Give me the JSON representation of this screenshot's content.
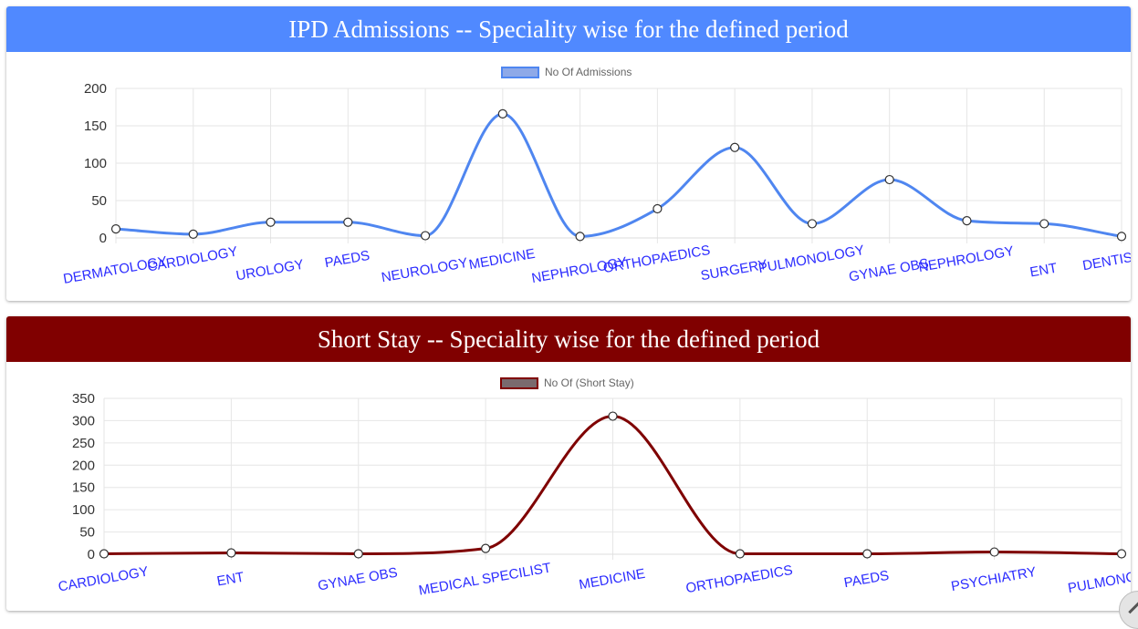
{
  "colors": {
    "ipd_header": "#5089ff",
    "ipd_line": "#4f86f0",
    "ipd_legend_fill": "#8ea9e8",
    "ss_header": "#800000",
    "ss_line": "#7f0000",
    "ss_legend_fill": "#7a6a6e",
    "tick_label": "#2b2bff",
    "grid": "#e6e6e6"
  },
  "icons": {
    "corner": "pencil-icon"
  },
  "chart_data": [
    {
      "type": "line",
      "title": "IPD Admissions -- Speciality wise for the defined period",
      "legend_position": "top",
      "grid": true,
      "ylim": [
        0,
        200
      ],
      "yticks": [
        0,
        50,
        100,
        150,
        200
      ],
      "categories": [
        "DERMATOLOGY",
        "CARDIOLOGY",
        "UROLOGY",
        "PAEDS",
        "NEUROLOGY",
        "MEDICINE",
        "NEPHROLOGY",
        "ORTHOPAEDICS",
        "SURGERY",
        "PULMONOLOGY",
        "GYNAE OBS",
        "NEPHROLOGY",
        "ENT",
        "DENTISTRY"
      ],
      "series": [
        {
          "name": "No Of Admissions",
          "values": [
            12,
            5,
            21,
            21,
            3,
            166,
            2,
            39,
            121,
            19,
            78,
            23,
            19,
            2
          ]
        }
      ]
    },
    {
      "type": "line",
      "title": "Short Stay -- Speciality wise for the defined period",
      "legend_position": "top",
      "grid": true,
      "ylim": [
        0,
        350
      ],
      "yticks": [
        0,
        50,
        100,
        150,
        200,
        250,
        300,
        350
      ],
      "categories": [
        "CARDIOLOGY",
        "ENT",
        "GYNAE OBS",
        "MEDICAL SPECILIST",
        "MEDICINE",
        "ORTHOPAEDICS",
        "PAEDS",
        "PSYCHIATRY",
        "PULMONOLOGY"
      ],
      "series": [
        {
          "name": "No Of (Short Stay)",
          "values": [
            1,
            3,
            1,
            13,
            310,
            1,
            1,
            5,
            1
          ]
        }
      ]
    }
  ]
}
